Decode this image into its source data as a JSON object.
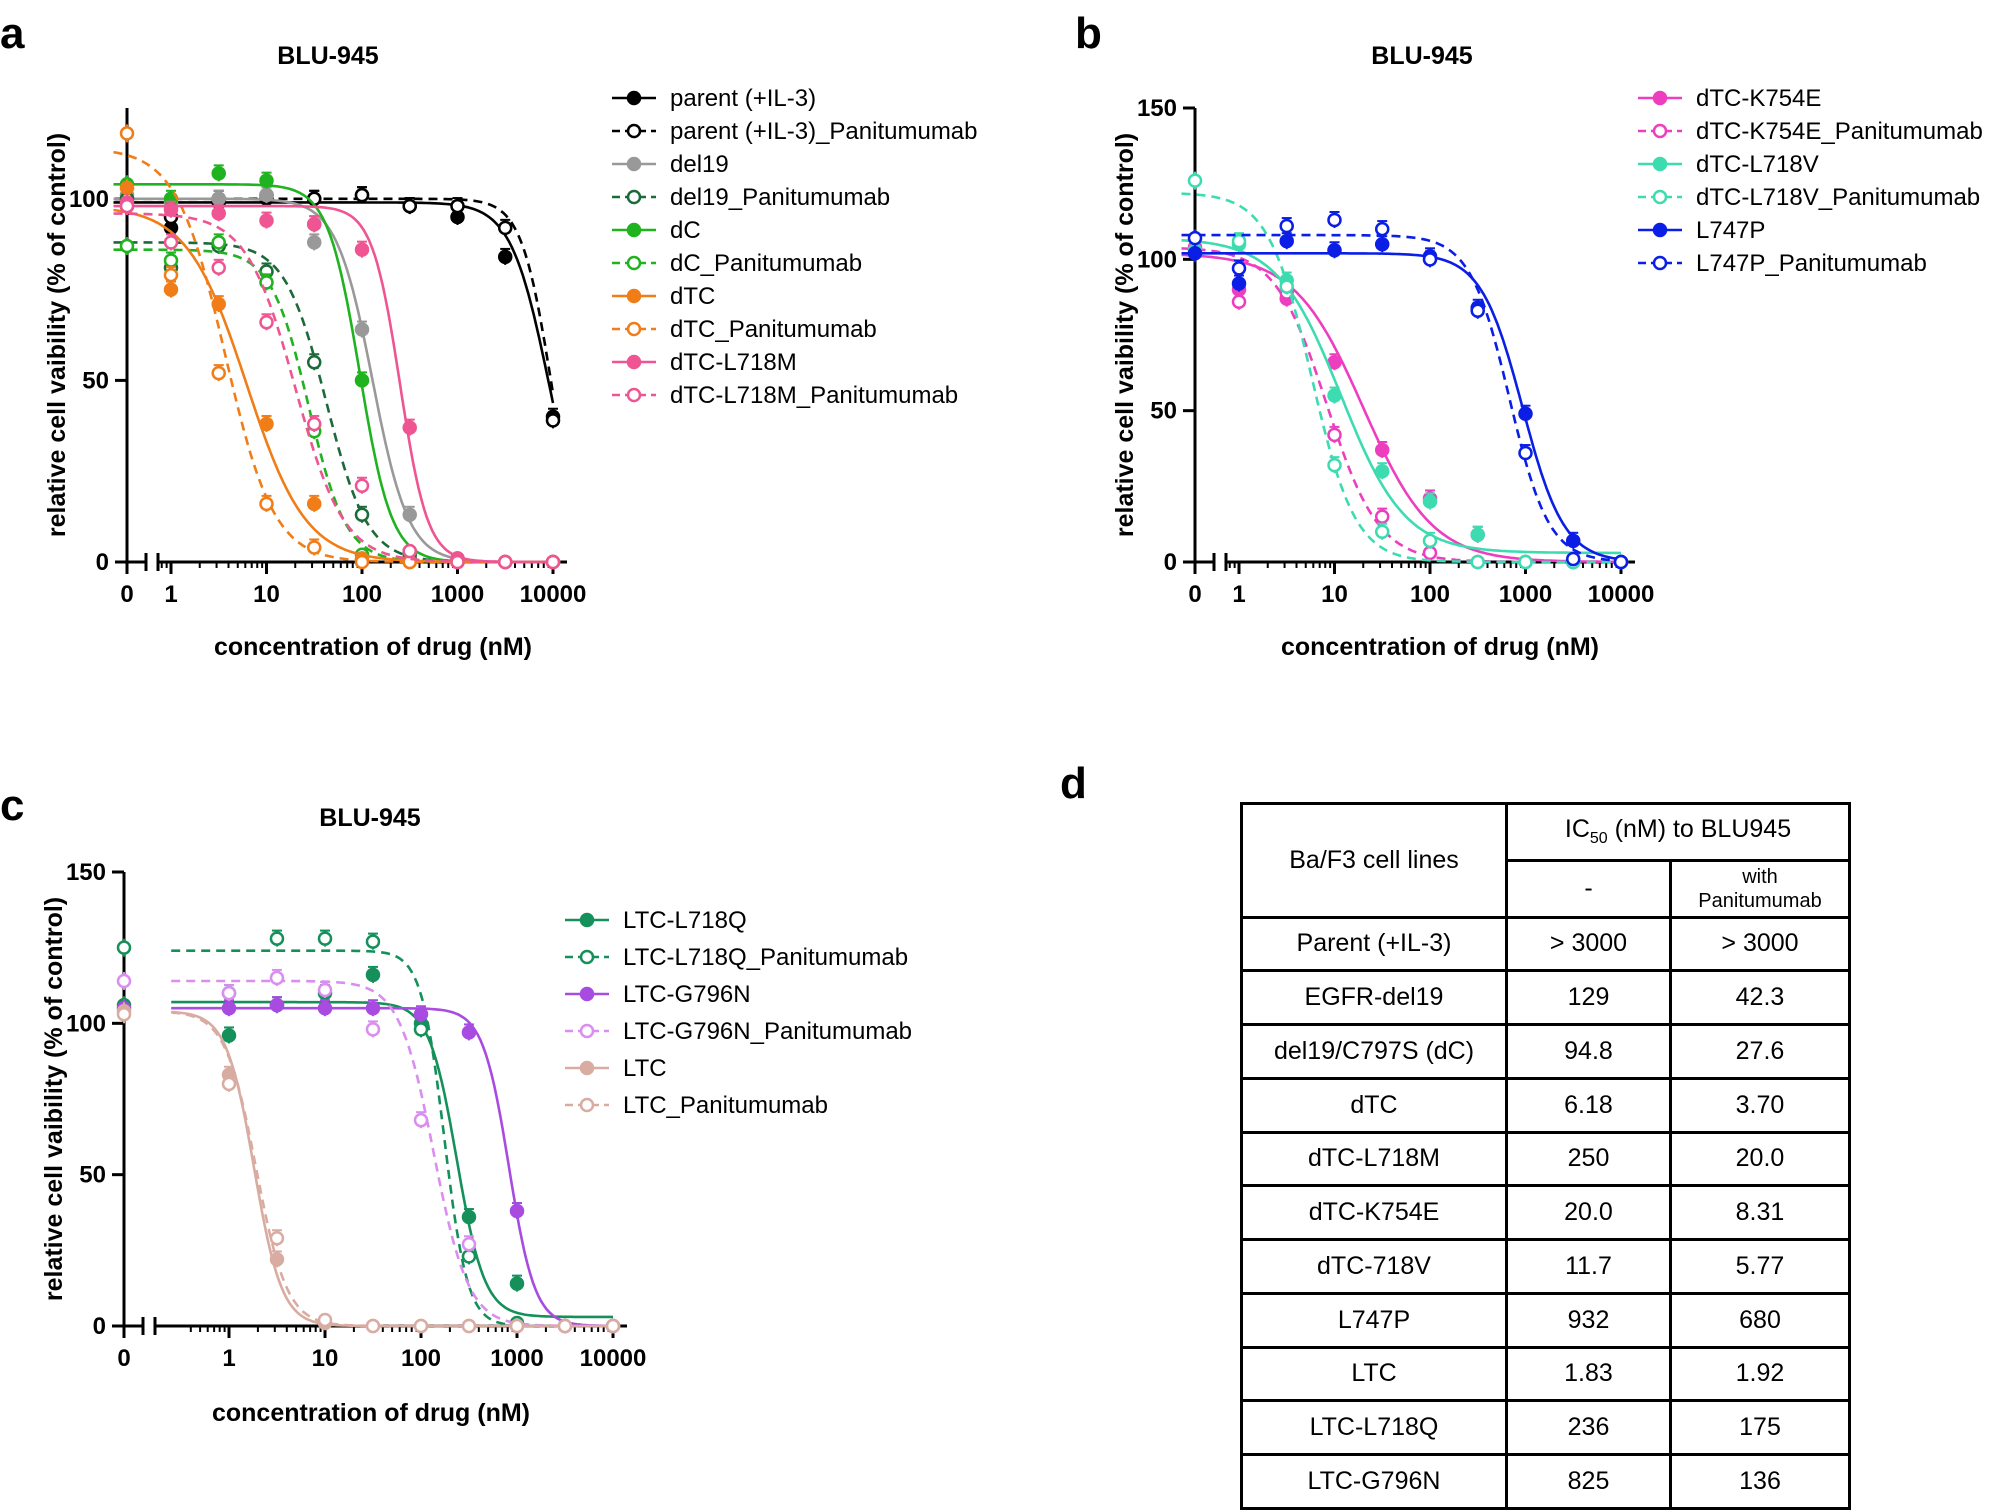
{
  "chart_data": [
    {
      "type": "line",
      "panel": "a",
      "title": "BLU-945",
      "xlabel": "concentration of drug (nM)",
      "ylabel": "relative cell vaibility (% of control)",
      "xscale": "log",
      "xlim": [
        0.3,
        15000
      ],
      "ylim": [
        0,
        125
      ],
      "x_tick_labels": [
        "0",
        "1",
        "10",
        "100",
        "1000",
        "10000"
      ],
      "y_tick_labels": [
        "0",
        "50",
        "100"
      ],
      "y_ticks": [
        0,
        50,
        100
      ],
      "legend_position": "top-right",
      "x_conc": [
        1,
        3.16,
        10,
        31.6,
        100,
        316,
        1000,
        3160,
        10000
      ],
      "series": [
        {
          "name": "parent (+IL-3)",
          "color": "#000000",
          "dashed": false,
          "filled": true,
          "top": 99,
          "bottom": 0,
          "ic50": 9000,
          "hill": 2.2,
          "zero": 98,
          "points": [
            92,
            99,
            100,
            100,
            101,
            98,
            95,
            84,
            40
          ]
        },
        {
          "name": "parent (+IL-3)_Panitumumab",
          "color": "#000000",
          "dashed": true,
          "filled": false,
          "top": 100,
          "bottom": 0,
          "ic50": 9500,
          "hill": 2.8,
          "zero": 100,
          "points": [
            95,
            100,
            101,
            100,
            101,
            98,
            98,
            92,
            39
          ]
        },
        {
          "name": "del19",
          "color": "#999999",
          "dashed": false,
          "filled": true,
          "top": 100,
          "bottom": 0,
          "ic50": 129,
          "hill": 2.3,
          "zero": 101,
          "points": [
            99,
            100,
            101,
            88,
            64,
            13,
            1,
            0,
            0
          ]
        },
        {
          "name": "del19_Panitumumab",
          "color": "#1b6b3a",
          "dashed": true,
          "filled": false,
          "top": 88,
          "bottom": 0,
          "ic50": 42.3,
          "hill": 2.0,
          "zero": 100,
          "points": [
            81,
            87,
            80,
            55,
            13,
            2,
            0,
            0,
            0
          ]
        },
        {
          "name": "dC",
          "color": "#1fb31f",
          "dashed": false,
          "filled": true,
          "top": 104,
          "bottom": 0,
          "ic50": 94.8,
          "hill": 2.6,
          "zero": 104,
          "points": [
            100,
            107,
            105,
            93,
            50,
            3,
            0,
            0,
            0
          ]
        },
        {
          "name": "dC_Panitumumab",
          "color": "#1fb31f",
          "dashed": true,
          "filled": false,
          "top": 86,
          "bottom": 0,
          "ic50": 27.6,
          "hill": 2.2,
          "zero": 87,
          "points": [
            83,
            88,
            77,
            36,
            2,
            0,
            0,
            0,
            0
          ]
        },
        {
          "name": "dTC",
          "color": "#f07d18",
          "dashed": false,
          "filled": true,
          "top": 98,
          "bottom": 0,
          "ic50": 6.18,
          "hill": 1.4,
          "zero": 103,
          "points": [
            75,
            71,
            38,
            16,
            1,
            0,
            0,
            0,
            0
          ]
        },
        {
          "name": "dTC_Panitumumab",
          "color": "#f07d18",
          "dashed": true,
          "filled": false,
          "top": 114,
          "bottom": 0,
          "ic50": 3.7,
          "hill": 1.7,
          "zero": 118,
          "points": [
            79,
            52,
            16,
            4,
            0,
            0,
            0,
            0,
            0
          ]
        },
        {
          "name": "dTC-L718M",
          "color": "#ee5592",
          "dashed": false,
          "filled": true,
          "top": 98,
          "bottom": 0,
          "ic50": 250,
          "hill": 3.0,
          "zero": 99,
          "points": [
            97,
            96,
            94,
            93,
            86,
            37,
            1,
            0,
            0
          ]
        },
        {
          "name": "dTC-L718M_Panitumumab",
          "color": "#ee5592",
          "dashed": true,
          "filled": false,
          "top": 96,
          "bottom": 0,
          "ic50": 20.0,
          "hill": 1.7,
          "zero": 98,
          "points": [
            88,
            81,
            66,
            38,
            21,
            3,
            0,
            0,
            0
          ]
        }
      ]
    },
    {
      "type": "line",
      "panel": "b",
      "title": "BLU-945",
      "xlabel": "concentration of drug (nM)",
      "ylabel": "relative cell vaibility (% of control)",
      "xscale": "log",
      "xlim": [
        0.3,
        15000
      ],
      "ylim": [
        0,
        150
      ],
      "x_tick_labels": [
        "0",
        "1",
        "10",
        "100",
        "1000",
        "10000"
      ],
      "y_tick_labels": [
        "0",
        "50",
        "100",
        "150"
      ],
      "y_ticks": [
        0,
        50,
        100,
        150
      ],
      "legend_position": "top-right",
      "x_conc": [
        1,
        3.16,
        10,
        31.6,
        100,
        316,
        1000,
        3160,
        10000
      ],
      "series": [
        {
          "name": "dTC-K754E",
          "color": "#ee3ec0",
          "dashed": false,
          "filled": true,
          "top": 102,
          "bottom": 0,
          "ic50": 20.0,
          "hill": 1.2,
          "zero": 103,
          "points": [
            90,
            87,
            66,
            37,
            21,
            9,
            0,
            0,
            0
          ]
        },
        {
          "name": "dTC-K754E_Panitumumab",
          "color": "#ee3ec0",
          "dashed": true,
          "filled": false,
          "top": 104,
          "bottom": 0,
          "ic50": 8.31,
          "hill": 1.6,
          "zero": 104,
          "points": [
            86,
            89,
            42,
            15,
            3,
            0,
            0,
            0,
            0
          ]
        },
        {
          "name": "dTC-L718V",
          "color": "#3ddcb0",
          "dashed": false,
          "filled": true,
          "top": 107,
          "bottom": 3,
          "ic50": 11.7,
          "hill": 1.3,
          "zero": 103,
          "points": [
            105,
            93,
            55,
            30,
            20,
            9,
            0,
            0,
            0
          ]
        },
        {
          "name": "dTC-L718V_Panitumumab",
          "color": "#3ddcb0",
          "dashed": true,
          "filled": false,
          "top": 122,
          "bottom": 0,
          "ic50": 5.77,
          "hill": 1.9,
          "zero": 126,
          "points": [
            106,
            91,
            32,
            10,
            7,
            0,
            0,
            0,
            0
          ]
        },
        {
          "name": "L747P",
          "color": "#0a1ee6",
          "dashed": false,
          "filled": true,
          "top": 102,
          "bottom": 0,
          "ic50": 932,
          "hill": 2.0,
          "zero": 102,
          "points": [
            92,
            106,
            103,
            105,
            101,
            84,
            49,
            7,
            0
          ]
        },
        {
          "name": "L747P_Panitumumab",
          "color": "#0a1ee6",
          "dashed": true,
          "filled": false,
          "top": 108,
          "bottom": 0,
          "ic50": 680,
          "hill": 2.1,
          "zero": 107,
          "points": [
            97,
            111,
            113,
            110,
            100,
            83,
            36,
            1,
            0
          ]
        }
      ]
    },
    {
      "type": "line",
      "panel": "c",
      "title": "BLU-945",
      "xlabel": "concentration of drug (nM)",
      "ylabel": "relative cell vaibility (% of control)",
      "xscale": "log",
      "xlim": [
        0.3,
        15000
      ],
      "ylim": [
        0,
        150
      ],
      "x_tick_labels": [
        "0",
        "1",
        "10",
        "100",
        "1000",
        "10000"
      ],
      "y_tick_labels": [
        "0",
        "50",
        "100",
        "150"
      ],
      "y_ticks": [
        0,
        50,
        100,
        150
      ],
      "legend_position": "right",
      "x_conc": [
        1,
        3.16,
        10,
        31.6,
        100,
        316,
        1000,
        3160,
        10000
      ],
      "series": [
        {
          "name": "LTC-L718Q",
          "color": "#15905a",
          "dashed": false,
          "filled": true,
          "top": 107,
          "bottom": 3,
          "ic50": 236,
          "hill": 3.0,
          "zero": 106,
          "points": [
            96,
            106,
            110,
            116,
            100,
            36,
            14,
            0,
            0
          ]
        },
        {
          "name": "LTC-L718Q_Panitumumab",
          "color": "#15905a",
          "dashed": true,
          "filled": false,
          "top": 124,
          "bottom": 0,
          "ic50": 175,
          "hill": 3.6,
          "zero": 125,
          "points": [
            110,
            128,
            128,
            127,
            98,
            23,
            1,
            0,
            0
          ]
        },
        {
          "name": "LTC-G796N",
          "color": "#a84be0",
          "dashed": false,
          "filled": true,
          "top": 105,
          "bottom": 0,
          "ic50": 825,
          "hill": 3.2,
          "zero": 105,
          "points": [
            105,
            106,
            105,
            105,
            103,
            97,
            38,
            0,
            0
          ]
        },
        {
          "name": "LTC-G796N_Panitumumab",
          "color": "#d98ef0",
          "dashed": true,
          "filled": false,
          "top": 114,
          "bottom": 0,
          "ic50": 136,
          "hill": 2.4,
          "zero": 114,
          "points": [
            110,
            115,
            111,
            98,
            68,
            27,
            0,
            0,
            0
          ]
        },
        {
          "name": "LTC",
          "color": "#d9aca2",
          "dashed": false,
          "filled": true,
          "top": 104,
          "bottom": 0,
          "ic50": 1.83,
          "hill": 3.0,
          "zero": 104,
          "points": [
            83,
            22,
            1,
            0,
            0,
            0,
            0,
            0,
            0
          ]
        },
        {
          "name": "LTC_Panitumumab",
          "color": "#d9aca2",
          "dashed": true,
          "filled": false,
          "top": 104,
          "bottom": 0,
          "ic50": 1.92,
          "hill": 2.7,
          "zero": 103,
          "points": [
            80,
            29,
            2,
            0,
            0,
            0,
            0,
            0,
            0
          ]
        }
      ]
    }
  ],
  "panel_d": {
    "letter": "d",
    "col_header_left": "Ba/F3 cell lines",
    "col_header_ic50_prefix": "IC",
    "col_header_ic50_sub": "50",
    "col_header_ic50_suffix": " (nM) to BLU945",
    "col_sub_without": "-",
    "col_sub_with_line1": "with",
    "col_sub_with_line2": "Panitumumab",
    "rows": [
      {
        "cell": "Parent (+IL-3)",
        "ic50": "> 3000",
        "ic50_pan": "> 3000"
      },
      {
        "cell": "EGFR-del19",
        "ic50": "129",
        "ic50_pan": "42.3"
      },
      {
        "cell": "del19/C797S (dC)",
        "ic50": "94.8",
        "ic50_pan": "27.6"
      },
      {
        "cell": "dTC",
        "ic50": "6.18",
        "ic50_pan": "3.70"
      },
      {
        "cell": "dTC-L718M",
        "ic50": "250",
        "ic50_pan": "20.0"
      },
      {
        "cell": "dTC-K754E",
        "ic50": "20.0",
        "ic50_pan": "8.31"
      },
      {
        "cell": "dTC-718V",
        "ic50": "11.7",
        "ic50_pan": "5.77"
      },
      {
        "cell": "L747P",
        "ic50": "932",
        "ic50_pan": "680"
      },
      {
        "cell": "LTC",
        "ic50": "1.83",
        "ic50_pan": "1.92"
      },
      {
        "cell": "LTC-L718Q",
        "ic50": "236",
        "ic50_pan": "175"
      },
      {
        "cell": "LTC-G796N",
        "ic50": "825",
        "ic50_pan": "136"
      }
    ]
  }
}
